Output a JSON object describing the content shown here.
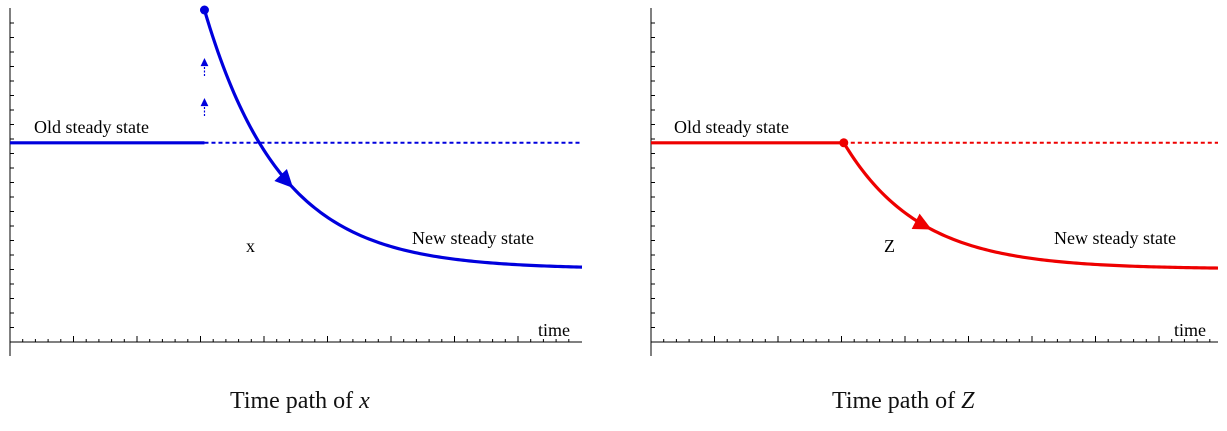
{
  "chart_data": [
    {
      "type": "line",
      "color": "#0000dd",
      "x_axis_label": "time",
      "old_label": "Old steady state",
      "new_label": "New steady state",
      "curve_label": "x",
      "caption_text": "Time path of ",
      "caption_var": "x",
      "old_level": 0.6,
      "new_level": 0.22,
      "jump_level": 1.0,
      "shock_time": 0.34,
      "decay_rate": 7.5,
      "jump": true,
      "series": [
        {
          "name": "x",
          "x": [
            0.0,
            0.34,
            0.34,
            0.4,
            0.45,
            0.5,
            0.6,
            0.7,
            0.8,
            1.0
          ],
          "y": [
            0.6,
            0.6,
            1.0,
            0.66,
            0.48,
            0.37,
            0.27,
            0.24,
            0.23,
            0.22
          ]
        }
      ]
    },
    {
      "type": "line",
      "color": "#ee0000",
      "x_axis_label": "time",
      "old_label": "Old steady state",
      "new_label": "New steady state",
      "curve_label": "Z",
      "caption_text": "Time path of ",
      "caption_var": "Z",
      "old_level": 0.6,
      "new_level": 0.22,
      "shock_time": 0.34,
      "decay_rate": 7.5,
      "jump": false,
      "series": [
        {
          "name": "Z",
          "x": [
            0.0,
            0.34,
            0.4,
            0.45,
            0.5,
            0.6,
            0.7,
            0.8,
            1.0
          ],
          "y": [
            0.6,
            0.6,
            0.46,
            0.38,
            0.32,
            0.26,
            0.24,
            0.23,
            0.22
          ]
        }
      ]
    }
  ]
}
